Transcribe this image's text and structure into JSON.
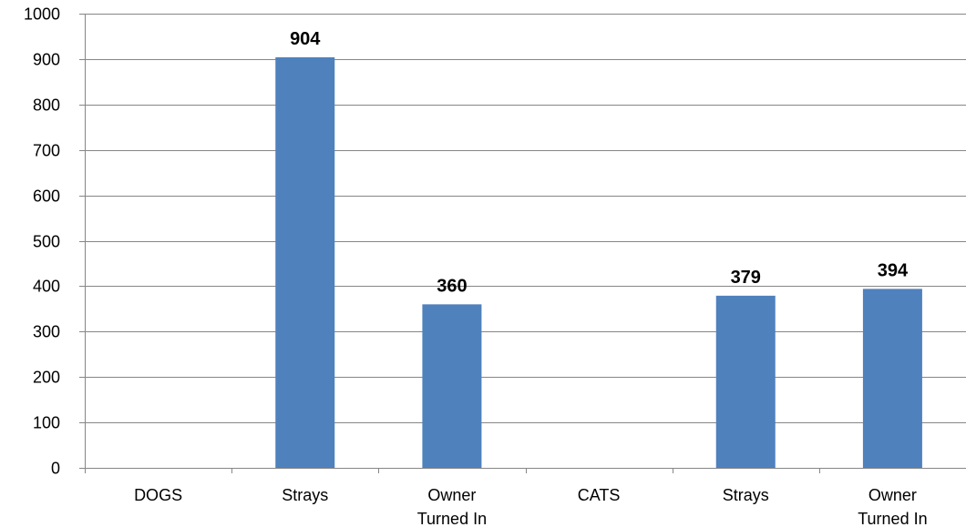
{
  "chart_data": {
    "type": "bar",
    "categories": [
      [
        "DOGS"
      ],
      [
        "Strays"
      ],
      [
        "Owner",
        "Turned In"
      ],
      [
        "CATS"
      ],
      [
        "Strays"
      ],
      [
        "Owner",
        "Turned In"
      ]
    ],
    "values": [
      null,
      904,
      360,
      null,
      379,
      394
    ],
    "data_labels": [
      "",
      "904",
      "360",
      "",
      "379",
      "394"
    ],
    "ylim": [
      0,
      1000
    ],
    "yticks": [
      0,
      100,
      200,
      300,
      400,
      500,
      600,
      700,
      800,
      900,
      1000
    ],
    "grid": true,
    "legend": "none",
    "colors": {
      "bar": "#4F81BD",
      "grid": "#868686",
      "axis": "#868686"
    }
  }
}
